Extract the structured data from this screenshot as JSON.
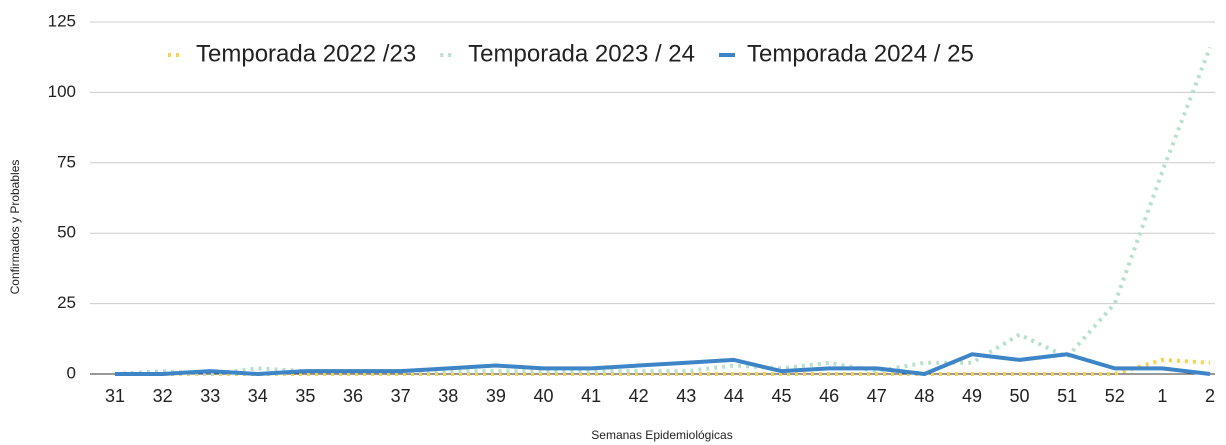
{
  "chart_data": {
    "type": "line",
    "y_label": "Confirmados y Probables",
    "x_label": "Semanas Epidemiológicas",
    "categories": [
      "31",
      "32",
      "33",
      "34",
      "35",
      "36",
      "37",
      "38",
      "39",
      "40",
      "41",
      "42",
      "43",
      "44",
      "45",
      "46",
      "47",
      "48",
      "49",
      "50",
      "51",
      "52",
      "1",
      "2"
    ],
    "series": [
      {
        "name": "Temporada 2022 /23",
        "color": "#fcd04f",
        "dashed": true,
        "values": [
          0,
          0,
          0,
          0,
          0,
          0,
          0,
          0,
          0,
          0,
          0,
          0,
          0,
          0,
          0,
          0,
          0,
          0,
          0,
          0,
          0,
          0,
          5,
          4
        ]
      },
      {
        "name": "Temporada 2023 / 24",
        "color": "#b7e1cd",
        "dashed": true,
        "values": [
          0,
          1,
          0,
          2,
          1,
          1,
          1,
          1,
          1,
          1,
          1,
          1,
          1,
          3,
          2,
          4,
          1,
          4,
          4,
          14,
          6,
          25,
          72,
          116
        ]
      },
      {
        "name": "Temporada 2024 / 25",
        "color": "#3d85c6",
        "dashed": false,
        "values": [
          0,
          0,
          1,
          0,
          1,
          1,
          1,
          2,
          3,
          2,
          2,
          3,
          4,
          5,
          1,
          2,
          2,
          0,
          7,
          5,
          7,
          2,
          2,
          0
        ]
      }
    ],
    "ylim": [
      0,
      125
    ],
    "yticks": [
      0,
      25,
      50,
      75,
      100,
      125
    ],
    "grid": true
  }
}
